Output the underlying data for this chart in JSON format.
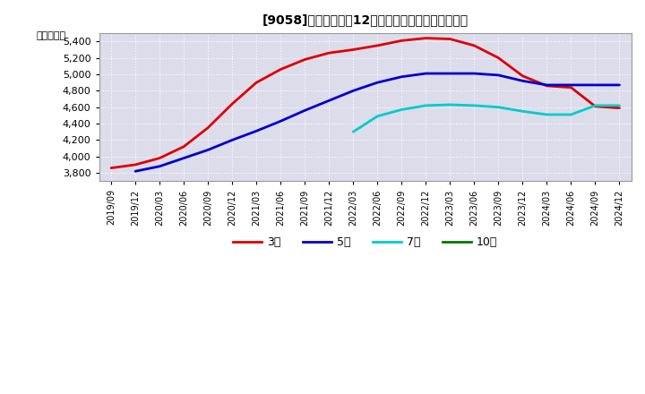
{
  "title": "[9058]　当期純利益12か月移動合計の平均値の推移",
  "ylabel": "（百万円）",
  "background_color": "#ffffff",
  "plot_bg_color": "#dcdceb",
  "grid_color": "#ffffff",
  "ylim": [
    3700,
    5500
  ],
  "yticks": [
    3800,
    4000,
    4200,
    4400,
    4600,
    4800,
    5000,
    5200,
    5400
  ],
  "x_labels": [
    "2019/09",
    "2019/12",
    "2020/03",
    "2020/06",
    "2020/09",
    "2020/12",
    "2021/03",
    "2021/06",
    "2021/09",
    "2021/12",
    "2022/03",
    "2022/06",
    "2022/09",
    "2022/12",
    "2023/03",
    "2023/06",
    "2023/09",
    "2023/12",
    "2024/03",
    "2024/06",
    "2024/09",
    "2024/12"
  ],
  "series": [
    {
      "label": "3年",
      "color": "#dd0000",
      "linewidth": 2.0,
      "data_x": [
        0,
        1,
        2,
        3,
        4,
        5,
        6,
        7,
        8,
        9,
        10,
        11,
        12,
        13,
        14,
        15,
        16,
        17,
        18,
        19,
        20,
        21
      ],
      "data_y": [
        3860,
        3900,
        3980,
        4120,
        4350,
        4640,
        4900,
        5060,
        5180,
        5260,
        5300,
        5350,
        5410,
        5440,
        5430,
        5350,
        5200,
        4980,
        4860,
        4840,
        4610,
        4590
      ]
    },
    {
      "label": "5年",
      "color": "#0000cc",
      "linewidth": 2.0,
      "data_x": [
        1,
        2,
        3,
        4,
        5,
        6,
        7,
        8,
        9,
        10,
        11,
        12,
        13,
        14,
        15,
        16,
        17,
        18,
        19,
        20,
        21
      ],
      "data_y": [
        3820,
        3880,
        3980,
        4080,
        4200,
        4310,
        4430,
        4560,
        4680,
        4800,
        4900,
        4970,
        5010,
        5010,
        5010,
        4990,
        4920,
        4870,
        4870,
        4870,
        4870
      ]
    },
    {
      "label": "7年",
      "color": "#00cccc",
      "linewidth": 2.0,
      "data_x": [
        10,
        11,
        12,
        13,
        14,
        15,
        16,
        17,
        18,
        19,
        20,
        21
      ],
      "data_y": [
        4300,
        4490,
        4570,
        4620,
        4630,
        4620,
        4600,
        4550,
        4510,
        4510,
        4620,
        4620
      ]
    },
    {
      "label": "10年",
      "color": "#007700",
      "linewidth": 2.0,
      "data_x": [],
      "data_y": []
    }
  ],
  "legend_colors": [
    "#dd0000",
    "#0000cc",
    "#00cccc",
    "#007700"
  ],
  "legend_labels": [
    "3年",
    "5年",
    "7年",
    "10年"
  ]
}
